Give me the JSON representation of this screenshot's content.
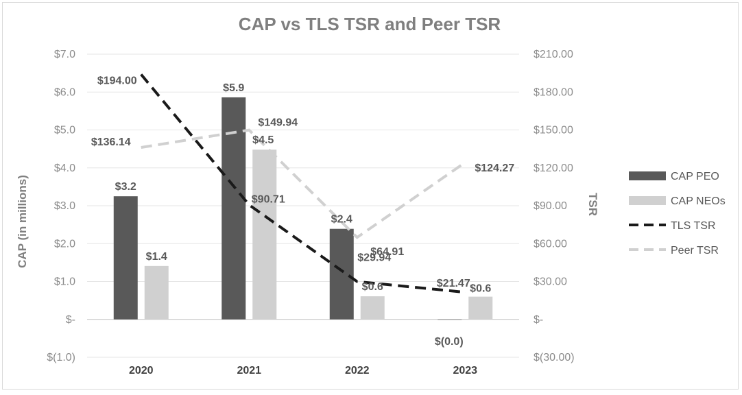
{
  "chart_data": {
    "type": "bar",
    "title": "CAP vs TLS TSR and Peer TSR",
    "categories": [
      "2020",
      "2021",
      "2022",
      "2023"
    ],
    "ylabel": "CAP (in millions)",
    "y2label": "TSR",
    "ylim": [
      -1.0,
      7.0
    ],
    "y2lim": [
      -30.0,
      210.0
    ],
    "yticks": [
      -1,
      0,
      1,
      2,
      3,
      4,
      5,
      6,
      7
    ],
    "ytick_labels": [
      "$(1.0)",
      "$-",
      "$1.0",
      "$2.0",
      "$3.0",
      "$4.0",
      "$5.0",
      "$6.0",
      "$7.0"
    ],
    "y2ticks": [
      -30,
      0,
      30,
      60,
      90,
      120,
      150,
      180,
      210
    ],
    "y2tick_labels": [
      "$(30.00)",
      "$-",
      "$30.00",
      "$60.00",
      "$90.00",
      "$120.00",
      "$150.00",
      "$180.00",
      "$210.00"
    ],
    "series": [
      {
        "name": "CAP PEO",
        "kind": "bar",
        "axis": "left",
        "color": "#595959",
        "values": [
          3.25,
          5.86,
          2.39,
          -0.01
        ],
        "labels": [
          "$3.2",
          "$5.9",
          "$2.4",
          "$(0.0)"
        ]
      },
      {
        "name": "CAP NEOs",
        "kind": "bar",
        "axis": "left",
        "color": "#d0d0d0",
        "values": [
          1.41,
          4.48,
          0.61,
          0.6
        ],
        "labels": [
          "$1.4",
          "$4.5",
          "$0.6",
          "$0.6"
        ]
      },
      {
        "name": "TLS TSR",
        "kind": "line",
        "axis": "right",
        "color": "#1a1a1a",
        "values": [
          194.0,
          90.71,
          29.94,
          21.47
        ],
        "labels": [
          "$194.00",
          "$90.71",
          "$29.94",
          "$21.47"
        ]
      },
      {
        "name": "Peer TSR",
        "kind": "line",
        "axis": "right",
        "color": "#d0d0d0",
        "values": [
          136.14,
          149.94,
          64.91,
          124.27
        ],
        "labels": [
          "$136.14",
          "$149.94",
          "$64.91",
          "$124.27"
        ]
      }
    ],
    "legend_position": "right"
  }
}
